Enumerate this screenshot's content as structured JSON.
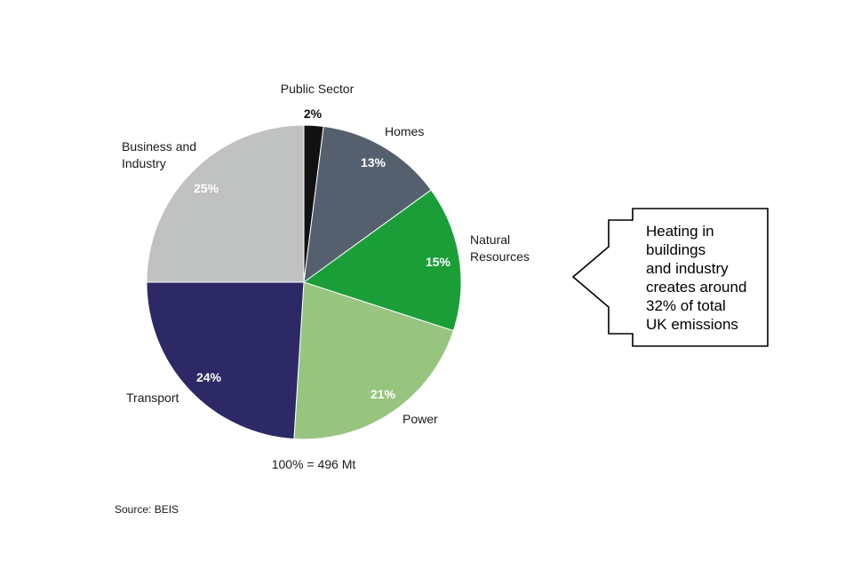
{
  "chart_data": {
    "type": "pie",
    "unit": "%",
    "slices": [
      {
        "label": "Public Sector",
        "label_lines": [
          "Public Sector"
        ],
        "value": 2,
        "color": "#111111",
        "pct_text_color": "#111111",
        "pct_outside": true
      },
      {
        "label": "Homes",
        "label_lines": [
          "Homes"
        ],
        "value": 13,
        "color": "#55606e",
        "pct_text_color": "#ffffff"
      },
      {
        "label": "Natural Resources",
        "label_lines": [
          "Natural",
          "Resources"
        ],
        "value": 15,
        "color": "#1b9e38",
        "pct_text_color": "#ffffff"
      },
      {
        "label": "Power",
        "label_lines": [
          "Power"
        ],
        "value": 21,
        "color": "#97c57f",
        "pct_text_color": "#ffffff"
      },
      {
        "label": "Transport",
        "label_lines": [
          "Transport"
        ],
        "value": 24,
        "color": "#2c2966",
        "pct_text_color": "#ffffff"
      },
      {
        "label": "Business and Industry",
        "label_lines": [
          "Business and",
          "Industry"
        ],
        "value": 25,
        "color": "#c0c2c1",
        "pct_text_color": "#ffffff"
      }
    ],
    "total_label": "100% = 496 Mt",
    "source": "Source: BEIS",
    "annotation": {
      "lines": [
        "Heating in",
        "buildings",
        "and industry",
        "creates around",
        "32% of total",
        "UK emissions"
      ]
    }
  }
}
